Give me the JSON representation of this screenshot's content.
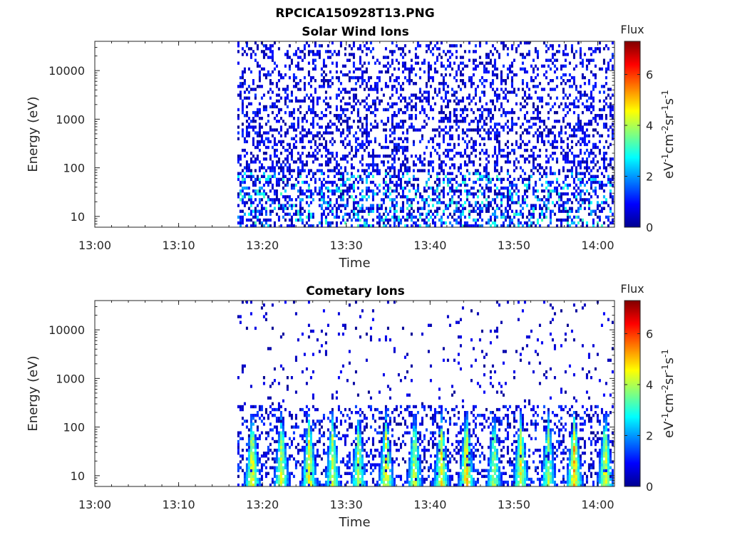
{
  "figure": {
    "title": "RPCICA150928T13.PNG"
  },
  "chart_data": [
    {
      "type": "heatmap",
      "title": "Solar Wind Ions",
      "xlabel": "Time",
      "ylabel": "Energy (eV)",
      "yscale": "log",
      "ylim": [
        6,
        40000
      ],
      "xlim": [
        "13:00",
        "14:02"
      ],
      "x_ticks": [
        "13:00",
        "13:10",
        "13:20",
        "13:30",
        "13:40",
        "13:50",
        "14:00"
      ],
      "y_ticks": [
        "10",
        "100",
        "1000",
        "10000"
      ],
      "data_start": "13:17",
      "data_end": "14:02",
      "colorbar": {
        "label": "Flux",
        "unit": "eV-1cm-2sr-1s-1",
        "min": 0,
        "max": 7.3,
        "ticks": [
          "0",
          "2",
          "4",
          "6"
        ],
        "colormap": "jet"
      },
      "pattern": "scattered low flux (0-2) over all energies 10-30000 eV, denser below 100 eV with occasional 2-3.5 values",
      "low_energy_peak_flux": 3.3,
      "bursts": []
    },
    {
      "type": "heatmap",
      "title": "Cometary Ions",
      "xlabel": "Time",
      "ylabel": "Energy (eV)",
      "yscale": "log",
      "ylim": [
        6,
        40000
      ],
      "xlim": [
        "13:00",
        "14:02"
      ],
      "x_ticks": [
        "13:00",
        "13:10",
        "13:20",
        "13:30",
        "13:40",
        "13:50",
        "14:00"
      ],
      "y_ticks": [
        "10",
        "100",
        "1000",
        "10000"
      ],
      "data_start": "13:17",
      "data_end": "14:02",
      "colorbar": {
        "label": "Flux",
        "unit": "eV-1cm-2sr-1s-1",
        "min": 0,
        "max": 7.3,
        "ticks": [
          "0",
          "2",
          "4",
          "6"
        ],
        "colormap": "jet"
      },
      "pattern": "repeated bursts with peak flux 4-6 at 10-60 eV extending to ~300 eV, sparse low flux at higher energies",
      "bursts": [
        {
          "time": "13:18.8",
          "peak_flux": 5.2
        },
        {
          "time": "13:22.3",
          "peak_flux": 5.0
        },
        {
          "time": "13:25.6",
          "peak_flux": 5.3
        },
        {
          "time": "13:28.4",
          "peak_flux": 4.8
        },
        {
          "time": "13:31.5",
          "peak_flux": 4.7
        },
        {
          "time": "13:34.8",
          "peak_flux": 5.3
        },
        {
          "time": "13:38.2",
          "peak_flux": 4.8
        },
        {
          "time": "13:41.4",
          "peak_flux": 5.2
        },
        {
          "time": "13:44.4",
          "peak_flux": 5.6
        },
        {
          "time": "13:47.7",
          "peak_flux": 4.6
        },
        {
          "time": "13:50.9",
          "peak_flux": 5.1
        },
        {
          "time": "13:54.2",
          "peak_flux": 4.6
        },
        {
          "time": "13:57.3",
          "peak_flux": 5.8
        },
        {
          "time": "14:01.0",
          "peak_flux": 5.2
        }
      ]
    }
  ]
}
